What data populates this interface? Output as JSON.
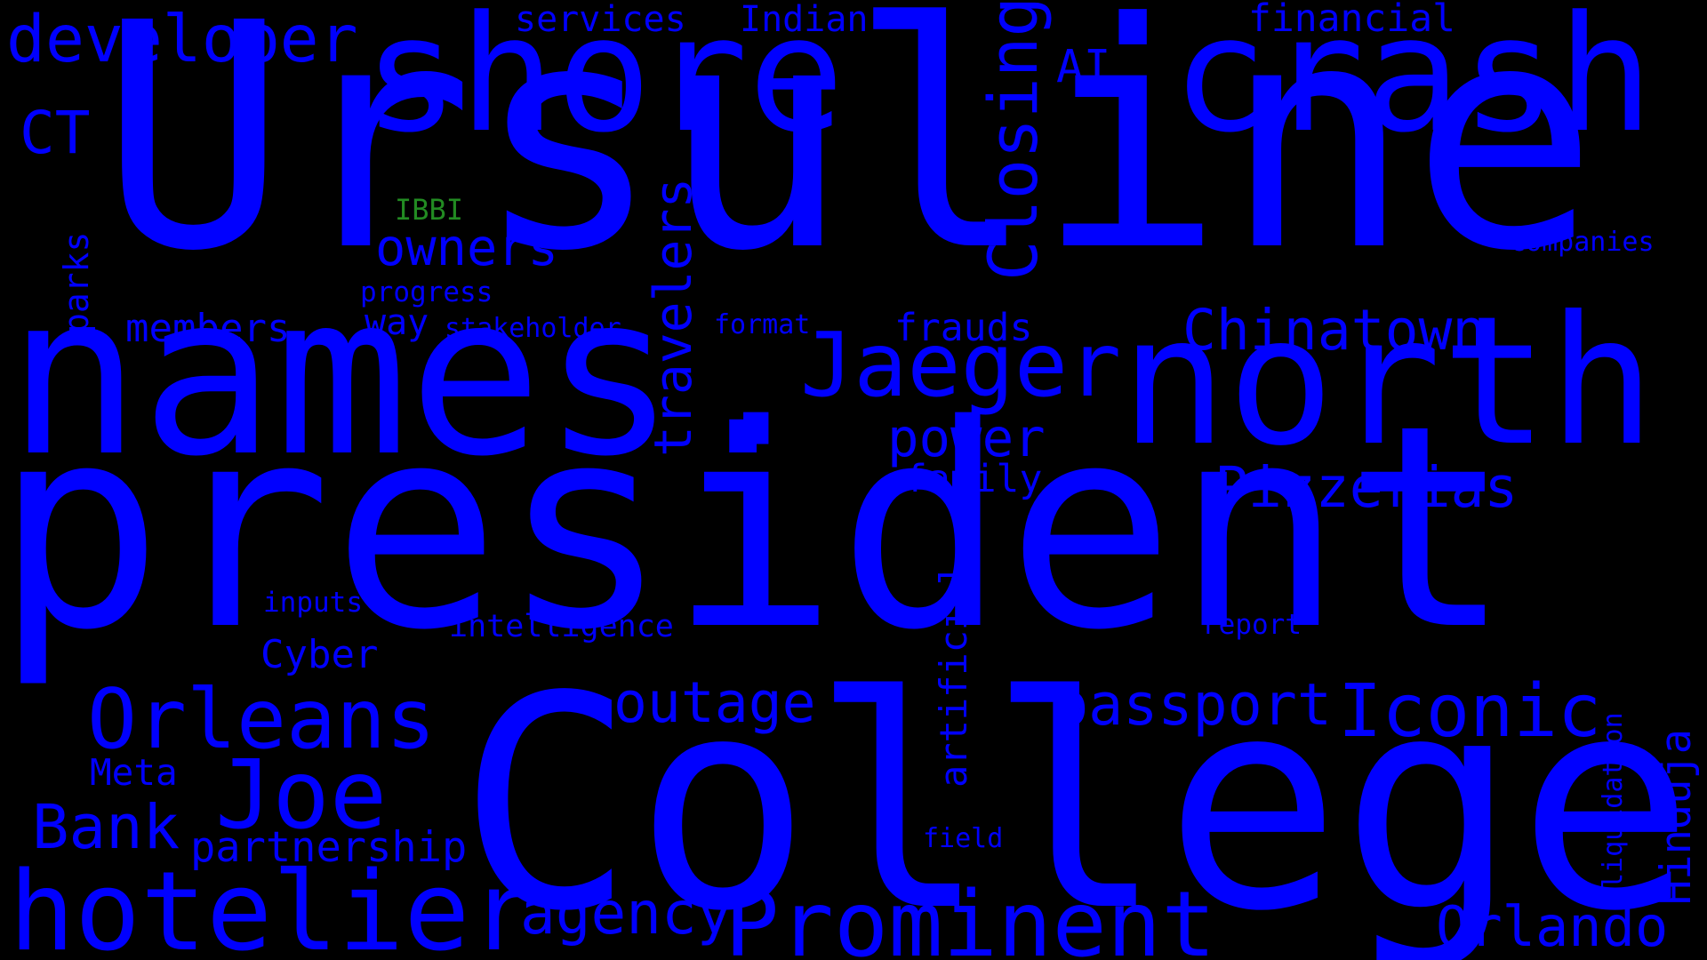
{
  "colors": {
    "background": "#000000",
    "primary": "#0000ff",
    "accent": "#228b22"
  },
  "words": [
    {
      "id": "ursuline",
      "text": "Ursuline",
      "color": "primary"
    },
    {
      "id": "names",
      "text": "names.",
      "color": "primary"
    },
    {
      "id": "president",
      "text": "president",
      "color": "primary"
    },
    {
      "id": "college",
      "text": "College",
      "color": "primary"
    },
    {
      "id": "shore",
      "text": "shore",
      "color": "primary"
    },
    {
      "id": "crash",
      "text": "crash",
      "color": "primary"
    },
    {
      "id": "north",
      "text": "north",
      "color": "primary"
    },
    {
      "id": "hotelier",
      "text": "hotelier",
      "color": "primary"
    },
    {
      "id": "prominent",
      "text": "Prominent",
      "color": "primary"
    },
    {
      "id": "orleans",
      "text": "Orleans",
      "color": "primary"
    },
    {
      "id": "joe",
      "text": "Joe",
      "color": "primary"
    },
    {
      "id": "jaeger",
      "text": "Jaeger",
      "color": "primary"
    },
    {
      "id": "developer",
      "text": "developer",
      "color": "primary"
    },
    {
      "id": "iconic",
      "text": "Iconic",
      "color": "primary"
    },
    {
      "id": "chinatown",
      "text": "Chinatown",
      "color": "primary"
    },
    {
      "id": "closing",
      "text": "Closing",
      "color": "primary"
    },
    {
      "id": "pizzerias",
      "text": "Pizzerias",
      "color": "primary"
    },
    {
      "id": "orlando",
      "text": "Orlando",
      "color": "primary"
    },
    {
      "id": "passport",
      "text": "passport",
      "color": "primary"
    },
    {
      "id": "outage",
      "text": "outage",
      "color": "primary"
    },
    {
      "id": "agency",
      "text": "agency",
      "color": "primary"
    },
    {
      "id": "bank",
      "text": "Bank",
      "color": "primary"
    },
    {
      "id": "travelers",
      "text": "travelers",
      "color": "primary"
    },
    {
      "id": "owners",
      "text": "owners",
      "color": "primary"
    },
    {
      "id": "power",
      "text": "power",
      "color": "primary"
    },
    {
      "id": "ct",
      "text": "CT",
      "color": "primary"
    },
    {
      "id": "ai",
      "text": "AI",
      "color": "primary"
    },
    {
      "id": "partnership",
      "text": "partnership",
      "color": "primary"
    },
    {
      "id": "hinduja",
      "text": "Hinduja",
      "color": "primary"
    },
    {
      "id": "cyber",
      "text": "Cyber",
      "color": "primary"
    },
    {
      "id": "members",
      "text": "members",
      "color": "primary"
    },
    {
      "id": "frauds",
      "text": "frauds",
      "color": "primary"
    },
    {
      "id": "family",
      "text": "family",
      "color": "primary"
    },
    {
      "id": "financial",
      "text": "financial",
      "color": "primary"
    },
    {
      "id": "meta",
      "text": "Meta",
      "color": "primary"
    },
    {
      "id": "artificial",
      "text": "artificial",
      "color": "primary"
    },
    {
      "id": "services",
      "text": "services",
      "color": "primary"
    },
    {
      "id": "indian",
      "text": "Indian",
      "color": "primary"
    },
    {
      "id": "way",
      "text": "way",
      "color": "primary"
    },
    {
      "id": "intelligence",
      "text": "intelligence",
      "color": "primary"
    },
    {
      "id": "parks",
      "text": "parks",
      "color": "primary"
    },
    {
      "id": "ibbi",
      "text": "IBBI",
      "color": "accent"
    },
    {
      "id": "progress",
      "text": "progress",
      "color": "primary"
    },
    {
      "id": "stakeholder",
      "text": "stakeholder",
      "color": "primary"
    },
    {
      "id": "format",
      "text": "format",
      "color": "primary"
    },
    {
      "id": "inputs",
      "text": "inputs",
      "color": "primary"
    },
    {
      "id": "report",
      "text": "report",
      "color": "primary"
    },
    {
      "id": "field",
      "text": "field",
      "color": "primary"
    },
    {
      "id": "companies",
      "text": "companies",
      "color": "primary"
    },
    {
      "id": "liquidation",
      "text": "liquidation",
      "color": "primary"
    }
  ]
}
